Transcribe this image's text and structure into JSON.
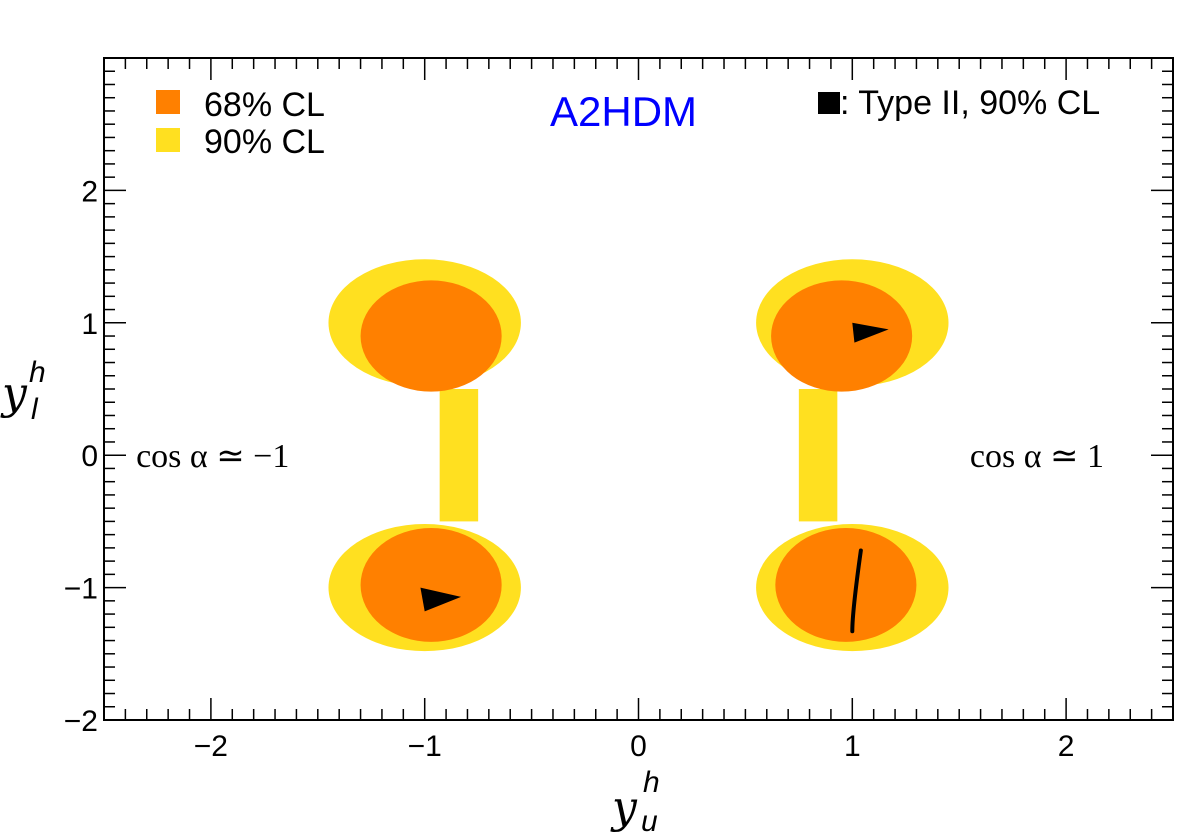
{
  "chart_data": {
    "type": "scatter",
    "title": "A2HDM",
    "xlabel": {
      "var": "y",
      "sup": "h",
      "sub": "u"
    },
    "ylabel": {
      "var": "y",
      "sup": "h",
      "sub": "l"
    },
    "xlim": [
      -2.5,
      2.5
    ],
    "ylim": [
      -2,
      3
    ],
    "x_ticks": [
      {
        "value": -2,
        "label": "−2"
      },
      {
        "value": -1,
        "label": "−1"
      },
      {
        "value": 0,
        "label": "0"
      },
      {
        "value": 1,
        "label": "1"
      },
      {
        "value": 2,
        "label": "2"
      }
    ],
    "y_ticks": [
      {
        "value": -2,
        "label": "−2"
      },
      {
        "value": -1,
        "label": "−1"
      },
      {
        "value": 0,
        "label": "0"
      },
      {
        "value": 1,
        "label": "1"
      },
      {
        "value": 2,
        "label": "2"
      }
    ],
    "legend": {
      "placement": "top-left",
      "entries": [
        {
          "label": "68% CL",
          "color": "#ff8000"
        },
        {
          "label": "90% CL",
          "color": "#ffe020"
        }
      ]
    },
    "type2_legend": {
      "label": ": Type II, 90% CL",
      "color": "#000000",
      "placement": "top-right"
    },
    "annotations": [
      {
        "text": "cos α ≃ −1",
        "x": -2.35,
        "y": 0
      },
      {
        "text": "cos α ≃ 1",
        "x": 1.55,
        "y": 0
      }
    ],
    "series": [
      {
        "name": "90% CL",
        "color": "#ffe020",
        "regions": [
          {
            "center": [
              -1.0,
              1.0
            ],
            "rx": 0.45,
            "ry": 0.48
          },
          {
            "center": [
              -1.0,
              -1.0
            ],
            "rx": 0.45,
            "ry": 0.48
          },
          {
            "center": [
              1.0,
              1.0
            ],
            "rx": 0.45,
            "ry": 0.48
          },
          {
            "center": [
              1.0,
              -1.0
            ],
            "rx": 0.45,
            "ry": 0.48
          }
        ]
      },
      {
        "name": "68% CL",
        "color": "#ff8000",
        "regions": [
          {
            "center": [
              -0.97,
              0.9
            ],
            "rx": 0.33,
            "ry": 0.42
          },
          {
            "center": [
              -0.97,
              -0.98
            ],
            "rx": 0.33,
            "ry": 0.43
          },
          {
            "center": [
              0.95,
              0.9
            ],
            "rx": 0.33,
            "ry": 0.42
          },
          {
            "center": [
              0.97,
              -0.98
            ],
            "rx": 0.33,
            "ry": 0.43
          }
        ]
      },
      {
        "name": "Type II, 90% CL",
        "color": "#000000",
        "shapes": [
          {
            "kind": "triangle",
            "points": [
              [
                1.0,
                1.0
              ],
              [
                1.17,
                0.95
              ],
              [
                1.01,
                0.85
              ]
            ]
          },
          {
            "kind": "triangle",
            "points": [
              [
                -1.02,
                -1.0
              ],
              [
                -0.83,
                -1.07
              ],
              [
                -1.0,
                -1.18
              ]
            ]
          },
          {
            "kind": "curve",
            "points": [
              [
                1.04,
                -0.72
              ],
              [
                1.02,
                -0.95
              ],
              [
                1.0,
                -1.2
              ],
              [
                1.0,
                -1.33
              ]
            ]
          }
        ]
      }
    ]
  }
}
